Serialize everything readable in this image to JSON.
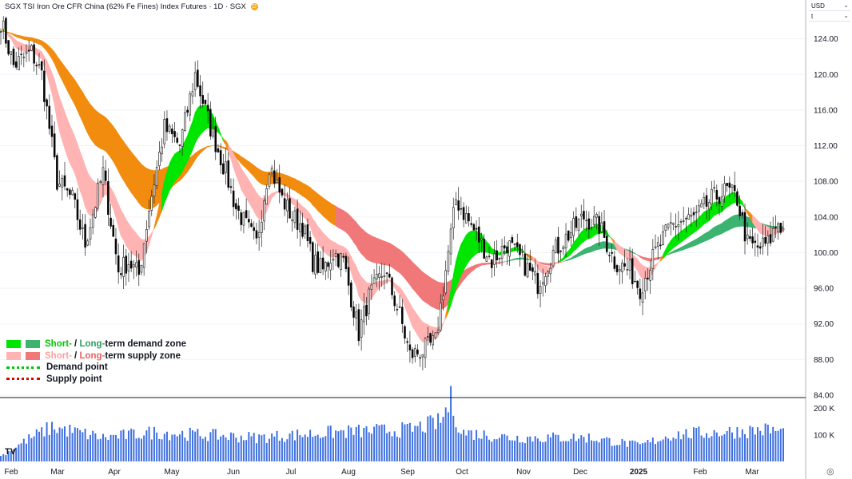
{
  "header": {
    "title": "SGX TSI Iron Ore CFR China (62% Fe Fines) Index Futures · 1D · SGX",
    "badge": "D"
  },
  "selectors": {
    "currency": "USD",
    "unit": "t"
  },
  "legend": {
    "demand_short": "Short-",
    "demand_sep": " / ",
    "demand_long": "Long-",
    "demand_rest": "term demand zone",
    "supply_short": "Short-",
    "supply_sep": " / ",
    "supply_long": "Long-",
    "supply_rest": "term supply zone",
    "demand_point": "Demand point",
    "supply_point": "Supply point"
  },
  "colors": {
    "demand_short": "#00e600",
    "demand_long": "#3cb371",
    "supply_short": "#ffb3b3",
    "supply_long": "#f07878",
    "transition": "#f28c0f",
    "volume": "#3d6fe0",
    "bull_body": "#ffffff",
    "bear_body": "#000000",
    "wick": "#222222"
  },
  "chart_data": {
    "type": "candlestick",
    "price_axis": {
      "ticks": [
        "124.00",
        "120.00",
        "116.00",
        "112.00",
        "108.00",
        "104.00",
        "100.00",
        "96.00",
        "92.00",
        "88.00",
        "84.00"
      ],
      "ylim": [
        84,
        128
      ]
    },
    "volume_axis": {
      "ticks": [
        "200 K",
        "100 K"
      ],
      "ylim": [
        0,
        220000
      ]
    },
    "time_axis": {
      "labels": [
        "Feb",
        "Mar",
        "Apr",
        "May",
        "Jun",
        "Jul",
        "Aug",
        "Sep",
        "Oct",
        "Nov",
        "Dec",
        "2025",
        "Feb",
        "Mar"
      ],
      "bold": [
        "2025"
      ]
    },
    "close_anchors": [
      [
        0,
        126.0
      ],
      [
        5,
        121.0
      ],
      [
        12,
        122.5
      ],
      [
        16,
        120.0
      ],
      [
        22,
        108.0
      ],
      [
        28,
        106.0
      ],
      [
        33,
        101.0
      ],
      [
        40,
        109.0
      ],
      [
        46,
        98.0
      ],
      [
        50,
        99.0
      ],
      [
        54,
        97.5
      ],
      [
        58,
        105.0
      ],
      [
        64,
        114.0
      ],
      [
        70,
        112.0
      ],
      [
        76,
        120.0
      ],
      [
        82,
        114.0
      ],
      [
        88,
        109.0
      ],
      [
        92,
        105.0
      ],
      [
        96,
        103.0
      ],
      [
        100,
        101.0
      ],
      [
        105,
        110.0
      ],
      [
        110,
        106.0
      ],
      [
        114,
        104.0
      ],
      [
        118,
        103.0
      ],
      [
        122,
        99.0
      ],
      [
        126,
        98.0
      ],
      [
        130,
        100.0
      ],
      [
        134,
        99.0
      ],
      [
        140,
        91.0
      ],
      [
        144,
        95.0
      ],
      [
        150,
        98.0
      ],
      [
        156,
        93.0
      ],
      [
        160,
        88.5
      ],
      [
        165,
        89.0
      ],
      [
        170,
        90.0
      ],
      [
        174,
        98.0
      ],
      [
        178,
        106.0
      ],
      [
        182,
        104.0
      ],
      [
        186,
        102.0
      ],
      [
        192,
        99.0
      ],
      [
        198,
        101.0
      ],
      [
        204,
        99.0
      ],
      [
        210,
        96.5
      ],
      [
        216,
        100.0
      ],
      [
        222,
        102.0
      ],
      [
        228,
        104.0
      ],
      [
        234,
        103.0
      ],
      [
        240,
        99.0
      ],
      [
        246,
        98.0
      ],
      [
        250,
        96.0
      ],
      [
        256,
        100.0
      ],
      [
        262,
        103.0
      ],
      [
        266,
        103.5
      ],
      [
        272,
        104.0
      ],
      [
        278,
        106.0
      ],
      [
        284,
        107.0
      ],
      [
        288,
        106.0
      ],
      [
        292,
        101.0
      ],
      [
        296,
        100.5
      ],
      [
        300,
        101.0
      ],
      [
        304,
        103.5
      ],
      [
        306,
        102.5
      ]
    ],
    "volume_anchors": [
      [
        0,
        20000
      ],
      [
        10,
        80000
      ],
      [
        20,
        130000
      ],
      [
        40,
        90000
      ],
      [
        60,
        110000
      ],
      [
        80,
        100000
      ],
      [
        100,
        90000
      ],
      [
        130,
        110000
      ],
      [
        160,
        120000
      ],
      [
        172,
        150000
      ],
      [
        176,
        230000
      ],
      [
        180,
        110000
      ],
      [
        200,
        90000
      ],
      [
        230,
        90000
      ],
      [
        250,
        60000
      ],
      [
        262,
        100000
      ],
      [
        280,
        110000
      ],
      [
        300,
        120000
      ],
      [
        306,
        110000
      ]
    ],
    "zones": [
      {
        "name": "Long-term demand zone",
        "start": 0,
        "end": 95,
        "top": [
          [
            0,
            112.5
          ],
          [
            95,
            112.0
          ]
        ],
        "bottom": [
          [
            0,
            106.5
          ],
          [
            95,
            109.0
          ]
        ]
      },
      {
        "name": "Long-term supply zone",
        "start": 130,
        "end": 306,
        "top": [
          [
            130,
            107.5
          ],
          [
            306,
            102.5
          ]
        ],
        "bottom": [
          [
            130,
            106.5
          ],
          [
            306,
            101.8
          ]
        ]
      },
      {
        "name": "Short-term supply zone",
        "start": 8,
        "end": 75,
        "top": [
          [
            8,
            124
          ],
          [
            40,
            106
          ],
          [
            60,
            110
          ]
        ],
        "bottom": [
          [
            8,
            120
          ],
          [
            40,
            100
          ],
          [
            60,
            104
          ]
        ]
      },
      {
        "name": "Short-term demand zone",
        "start": 175,
        "end": 300,
        "top": [
          [
            175,
            97
          ],
          [
            240,
            103
          ],
          [
            300,
            105
          ]
        ],
        "bottom": [
          [
            175,
            93
          ],
          [
            240,
            99
          ],
          [
            300,
            102
          ]
        ]
      }
    ]
  }
}
